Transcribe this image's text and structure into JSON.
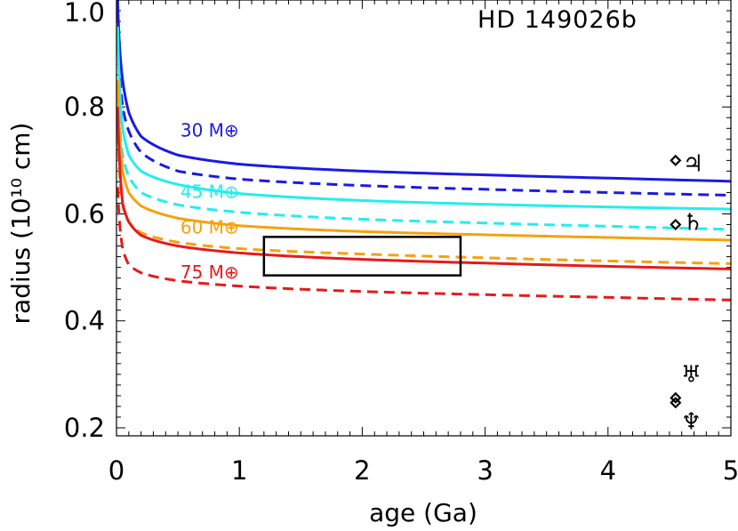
{
  "chart_data": {
    "type": "line",
    "title": "HD 149026b",
    "xlabel": "age (Ga)",
    "ylabel": "radius (10¹⁰ cm)",
    "xlim": [
      0,
      5
    ],
    "ylim": [
      0.185,
      1.0
    ],
    "xticks": [
      0,
      1,
      2,
      3,
      4,
      5
    ],
    "xtick_labels": [
      "0",
      "1",
      "2",
      "3",
      "4",
      "5"
    ],
    "yticks": [
      0.2,
      0.4,
      0.6,
      0.8,
      1.0
    ],
    "ytick_labels": [
      "0.2",
      "0.4",
      "0.6",
      "0.8",
      "1.0"
    ],
    "series": [
      {
        "name": "30 M⊕ solid",
        "label": "30 M⊕",
        "mass": 30,
        "color": "#1a1ae6",
        "dash": false,
        "x": [
          0.01,
          0.05,
          0.1,
          0.2,
          0.5,
          1,
          2,
          3,
          4,
          5
        ],
        "y": [
          1.0,
          0.85,
          0.79,
          0.745,
          0.71,
          0.693,
          0.68,
          0.673,
          0.667,
          0.661
        ]
      },
      {
        "name": "30 M⊕ dashed",
        "color": "#1a1ae6",
        "dash": true,
        "x": [
          0.01,
          0.05,
          0.1,
          0.2,
          0.5,
          1,
          2,
          3,
          4,
          5
        ],
        "y": [
          0.95,
          0.8,
          0.755,
          0.715,
          0.68,
          0.665,
          0.653,
          0.646,
          0.64,
          0.635
        ]
      },
      {
        "name": "45 M⊕ solid",
        "label": "45 M⊕",
        "mass": 45,
        "color": "#22eeee",
        "dash": false,
        "x": [
          0.01,
          0.05,
          0.1,
          0.2,
          0.5,
          1,
          2,
          3,
          4,
          5
        ],
        "y": [
          0.95,
          0.76,
          0.71,
          0.68,
          0.655,
          0.638,
          0.625,
          0.618,
          0.613,
          0.609
        ]
      },
      {
        "name": "45 M⊕ dashed",
        "color": "#22eeee",
        "dash": true,
        "x": [
          0.01,
          0.05,
          0.1,
          0.2,
          0.5,
          1,
          2,
          3,
          4,
          5
        ],
        "y": [
          0.85,
          0.71,
          0.67,
          0.64,
          0.617,
          0.603,
          0.59,
          0.583,
          0.577,
          0.571
        ]
      },
      {
        "name": "60 M⊕ solid",
        "label": "60 M⊕",
        "mass": 60,
        "color": "#f5a20d",
        "dash": false,
        "x": [
          0.01,
          0.05,
          0.1,
          0.2,
          0.5,
          1,
          2,
          3,
          4,
          5
        ],
        "y": [
          0.85,
          0.68,
          0.64,
          0.615,
          0.592,
          0.578,
          0.567,
          0.561,
          0.556,
          0.551
        ]
      },
      {
        "name": "60 M⊕ dashed",
        "color": "#f5a20d",
        "dash": true,
        "x": [
          0.01,
          0.05,
          0.1,
          0.2,
          0.5,
          1,
          2,
          3,
          4,
          5
        ],
        "y": [
          0.75,
          0.615,
          0.585,
          0.565,
          0.547,
          0.535,
          0.525,
          0.518,
          0.512,
          0.507
        ]
      },
      {
        "name": "75 M⊕ solid",
        "label": "75 M⊕",
        "mass": 75,
        "color": "#e61a1a",
        "dash": false,
        "x": [
          0.01,
          0.05,
          0.1,
          0.2,
          0.5,
          1,
          2,
          3,
          4,
          5
        ],
        "y": [
          0.8,
          0.62,
          0.585,
          0.56,
          0.54,
          0.527,
          0.515,
          0.508,
          0.502,
          0.497
        ]
      },
      {
        "name": "75 M⊕ dashed",
        "color": "#e61a1a",
        "dash": true,
        "x": [
          0.01,
          0.05,
          0.1,
          0.2,
          0.5,
          1,
          2,
          3,
          4,
          5
        ],
        "y": [
          0.65,
          0.535,
          0.505,
          0.49,
          0.475,
          0.465,
          0.455,
          0.449,
          0.444,
          0.439
        ]
      }
    ],
    "labels": [
      {
        "text": "30 M⊕",
        "x": 0.52,
        "y": 0.745,
        "color": "#1a1ae6"
      },
      {
        "text": "45 M⊕",
        "x": 0.52,
        "y": 0.63,
        "color": "#22eeee"
      },
      {
        "text": "60 M⊕",
        "x": 0.52,
        "y": 0.563,
        "color": "#f5a20d"
      },
      {
        "text": "75 M⊕",
        "x": 0.52,
        "y": 0.479,
        "color": "#e61a1a"
      }
    ],
    "box": {
      "x": [
        1.2,
        2.8
      ],
      "y": [
        0.485,
        0.557
      ],
      "color": "#000000"
    },
    "planets": [
      {
        "name": "Jupiter",
        "symbol": "♃",
        "age": 4.55,
        "radius": 0.7
      },
      {
        "name": "Saturn",
        "symbol": "♄",
        "age": 4.55,
        "radius": 0.58
      },
      {
        "name": "Uranus",
        "symbol": "♅",
        "age": 4.55,
        "radius": 0.256
      },
      {
        "name": "Neptune",
        "symbol": "♆",
        "age": 4.55,
        "radius": 0.247
      }
    ]
  }
}
